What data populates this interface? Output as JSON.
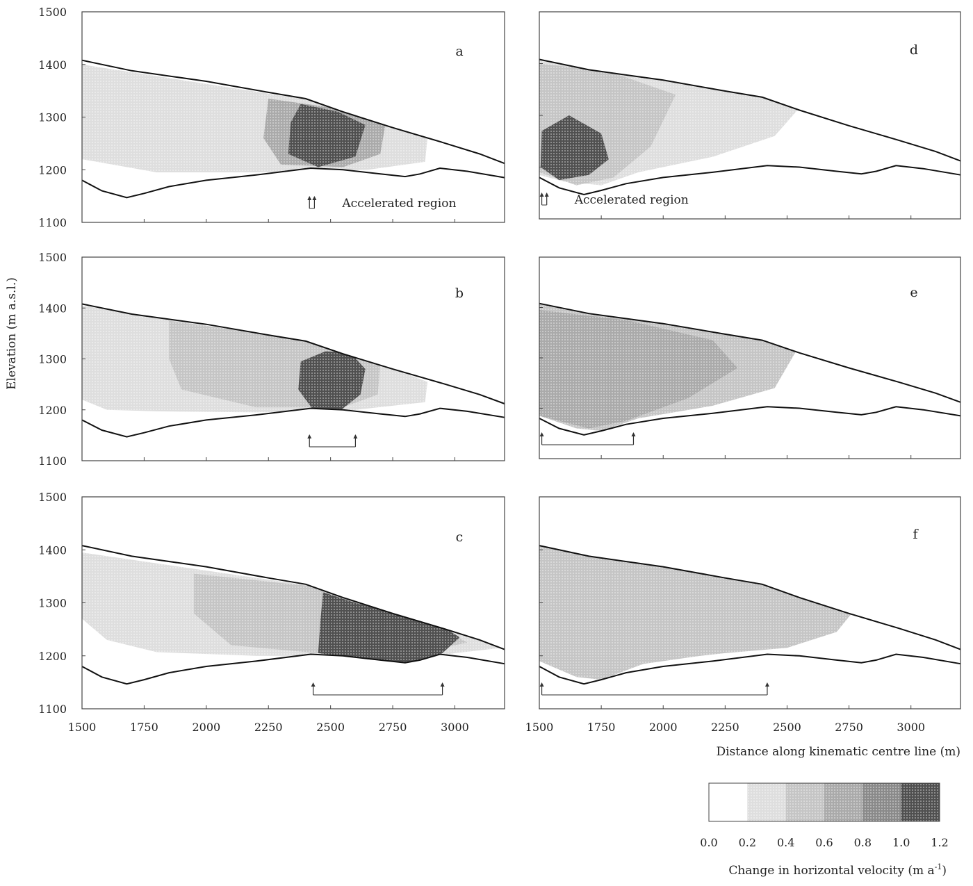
{
  "chart_data": {
    "type": "heatmap",
    "y_label": "Elevation (m a.s.l.)",
    "x_label": "Distance along kinematic centre line (m)",
    "x_range": [
      1500,
      3200
    ],
    "y_range": [
      1100,
      1500
    ],
    "x_ticks": [
      "1500",
      "1750",
      "2000",
      "2250",
      "2500",
      "2750",
      "3000"
    ],
    "y_ticks": [
      "1100",
      "1200",
      "1300",
      "1400",
      "1500"
    ],
    "colorbar": {
      "title": "Change in horizontal velocity (m a",
      "title_sup": "-1",
      "title_end": ")",
      "ticks": [
        "0.0",
        "0.2",
        "0.4",
        "0.6",
        "0.8",
        "1.0",
        "1.2"
      ],
      "colors": [
        "#ffffff",
        "#dedede",
        "#c5c5c5",
        "#aaaaaa",
        "#8a8a8a",
        "#505050"
      ]
    },
    "surface_profile": [
      [
        1500,
        1408
      ],
      [
        1700,
        1388
      ],
      [
        2000,
        1368
      ],
      [
        2250,
        1347
      ],
      [
        2400,
        1335
      ],
      [
        2550,
        1310
      ],
      [
        2750,
        1280
      ],
      [
        2950,
        1252
      ],
      [
        3100,
        1230
      ],
      [
        3200,
        1212
      ]
    ],
    "bed_profile": [
      [
        1500,
        1180
      ],
      [
        1580,
        1160
      ],
      [
        1680,
        1147
      ],
      [
        1750,
        1155
      ],
      [
        1850,
        1168
      ],
      [
        2000,
        1180
      ],
      [
        2200,
        1190
      ],
      [
        2420,
        1203
      ],
      [
        2550,
        1200
      ],
      [
        2700,
        1192
      ],
      [
        2800,
        1187
      ],
      [
        2860,
        1192
      ],
      [
        2940,
        1203
      ],
      [
        3050,
        1197
      ],
      [
        3200,
        1185
      ]
    ],
    "panels": [
      {
        "label": "a",
        "accel_region": [
          2415,
          2435
        ],
        "region_label": "Accelerated region",
        "zones": [
          {
            "points": [
              [
                1500,
                1400
              ],
              [
                2450,
                1330
              ],
              [
                2700,
                1290
              ],
              [
                2890,
                1260
              ],
              [
                2880,
                1215
              ],
              [
                2650,
                1200
              ],
              [
                2200,
                1195
              ],
              [
                1800,
                1195
              ],
              [
                1500,
                1220
              ]
            ],
            "value": 0.3
          },
          {
            "points": [
              [
                2250,
                1335
              ],
              [
                2550,
                1315
              ],
              [
                2720,
                1285
              ],
              [
                2700,
                1230
              ],
              [
                2550,
                1205
              ],
              [
                2300,
                1210
              ],
              [
                2230,
                1260
              ]
            ],
            "value": 0.7
          },
          {
            "points": [
              [
                2380,
                1325
              ],
              [
                2530,
                1310
              ],
              [
                2640,
                1285
              ],
              [
                2600,
                1225
              ],
              [
                2450,
                1205
              ],
              [
                2330,
                1230
              ],
              [
                2340,
                1290
              ]
            ],
            "value": 1.1
          }
        ]
      },
      {
        "label": "b",
        "accel_region": [
          2415,
          2600
        ],
        "region_label": "",
        "zones": [
          {
            "points": [
              [
                1500,
                1405
              ],
              [
                2450,
                1330
              ],
              [
                2700,
                1290
              ],
              [
                2890,
                1255
              ],
              [
                2880,
                1215
              ],
              [
                2600,
                1200
              ],
              [
                2200,
                1195
              ],
              [
                1800,
                1197
              ],
              [
                1600,
                1200
              ],
              [
                1500,
                1220
              ]
            ],
            "value": 0.3
          },
          {
            "points": [
              [
                1850,
                1375
              ],
              [
                2450,
                1335
              ],
              [
                2700,
                1290
              ],
              [
                2690,
                1230
              ],
              [
                2550,
                1205
              ],
              [
                2200,
                1205
              ],
              [
                1900,
                1240
              ],
              [
                1850,
                1300
              ]
            ],
            "value": 0.6
          },
          {
            "points": [
              [
                2380,
                1295
              ],
              [
                2480,
                1315
              ],
              [
                2580,
                1312
              ],
              [
                2640,
                1280
              ],
              [
                2620,
                1230
              ],
              [
                2530,
                1195
              ],
              [
                2430,
                1200
              ],
              [
                2370,
                1240
              ]
            ],
            "value": 1.1
          }
        ]
      },
      {
        "label": "c",
        "accel_region": [
          2430,
          2950
        ],
        "region_label": "",
        "zones": [
          {
            "points": [
              [
                1500,
                1395
              ],
              [
                2450,
                1330
              ],
              [
                2700,
                1290
              ],
              [
                2900,
                1262
              ],
              [
                3050,
                1240
              ],
              [
                3190,
                1215
              ],
              [
                3000,
                1205
              ],
              [
                2800,
                1190
              ],
              [
                2500,
                1200
              ],
              [
                2200,
                1200
              ],
              [
                1800,
                1207
              ],
              [
                1600,
                1230
              ],
              [
                1500,
                1270
              ]
            ],
            "value": 0.3
          },
          {
            "points": [
              [
                1950,
                1355
              ],
              [
                2450,
                1330
              ],
              [
                2700,
                1290
              ],
              [
                2950,
                1252
              ],
              [
                3050,
                1225
              ],
              [
                2900,
                1210
              ],
              [
                2700,
                1200
              ],
              [
                2450,
                1205
              ],
              [
                2100,
                1220
              ],
              [
                1950,
                1280
              ]
            ],
            "value": 0.6
          },
          {
            "points": [
              [
                2470,
                1320
              ],
              [
                2600,
                1300
              ],
              [
                2800,
                1275
              ],
              [
                2950,
                1255
              ],
              [
                3020,
                1235
              ],
              [
                2950,
                1205
              ],
              [
                2850,
                1190
              ],
              [
                2750,
                1185
              ],
              [
                2600,
                1195
              ],
              [
                2450,
                1205
              ],
              [
                2460,
                1270
              ]
            ],
            "value": 1.1
          }
        ]
      },
      {
        "label": "d",
        "accel_region": [
          1510,
          1530
        ],
        "region_label": "Accelerated region",
        "zones": [
          {
            "points": [
              [
                1500,
                1408
              ],
              [
                2000,
                1368
              ],
              [
                2350,
                1340
              ],
              [
                2560,
                1320
              ],
              [
                2450,
                1260
              ],
              [
                2200,
                1220
              ],
              [
                1900,
                1190
              ],
              [
                1750,
                1165
              ],
              [
                1600,
                1172
              ],
              [
                1500,
                1185
              ]
            ],
            "value": 0.3
          },
          {
            "points": [
              [
                1500,
                1400
              ],
              [
                1780,
                1385
              ],
              [
                2050,
                1340
              ],
              [
                1950,
                1240
              ],
              [
                1800,
                1180
              ],
              [
                1650,
                1165
              ],
              [
                1500,
                1190
              ]
            ],
            "value": 0.6
          },
          {
            "points": [
              [
                1510,
                1270
              ],
              [
                1620,
                1300
              ],
              [
                1750,
                1265
              ],
              [
                1780,
                1215
              ],
              [
                1700,
                1185
              ],
              [
                1580,
                1175
              ],
              [
                1505,
                1200
              ]
            ],
            "value": 1.1
          }
        ]
      },
      {
        "label": "e",
        "accel_region": [
          1510,
          1880
        ],
        "region_label": "",
        "zones": [
          {
            "points": [
              [
                1500,
                1410
              ],
              [
                2000,
                1368
              ],
              [
                2350,
                1342
              ],
              [
                2550,
                1325
              ],
              [
                2450,
                1240
              ],
              [
                2200,
                1205
              ],
              [
                1900,
                1180
              ],
              [
                1750,
                1155
              ],
              [
                1650,
                1160
              ],
              [
                1500,
                1185
              ]
            ],
            "value": 0.4
          },
          {
            "points": [
              [
                1500,
                1395
              ],
              [
                1850,
                1375
              ],
              [
                2200,
                1335
              ],
              [
                2300,
                1280
              ],
              [
                2100,
                1220
              ],
              [
                1850,
                1175
              ],
              [
                1700,
                1160
              ],
              [
                1500,
                1185
              ]
            ],
            "value": 0.65
          }
        ]
      },
      {
        "label": "f",
        "accel_region": [
          1510,
          2420
        ],
        "region_label": "",
        "zones": [
          {
            "points": [
              [
                1500,
                1410
              ],
              [
                2000,
                1368
              ],
              [
                2450,
                1335
              ],
              [
                2650,
                1310
              ],
              [
                2770,
                1285
              ],
              [
                2700,
                1245
              ],
              [
                2500,
                1215
              ],
              [
                2250,
                1205
              ],
              [
                1950,
                1190
              ],
              [
                1750,
                1155
              ],
              [
                1650,
                1160
              ],
              [
                1500,
                1190
              ]
            ],
            "value": 0.4
          },
          {
            "points": [
              [
                1700,
                1360
              ],
              [
                2100,
                1340
              ],
              [
                2450,
                1320
              ],
              [
                2500,
                1270
              ],
              [
                2400,
                1215
              ],
              [
                2150,
                1200
              ],
              [
                1850,
                1180
              ],
              [
                1700,
                1165
              ],
              [
                1600,
                1200
              ],
              [
                1620,
                1300
              ]
            ],
            "value": 0.6
          }
        ]
      }
    ]
  }
}
